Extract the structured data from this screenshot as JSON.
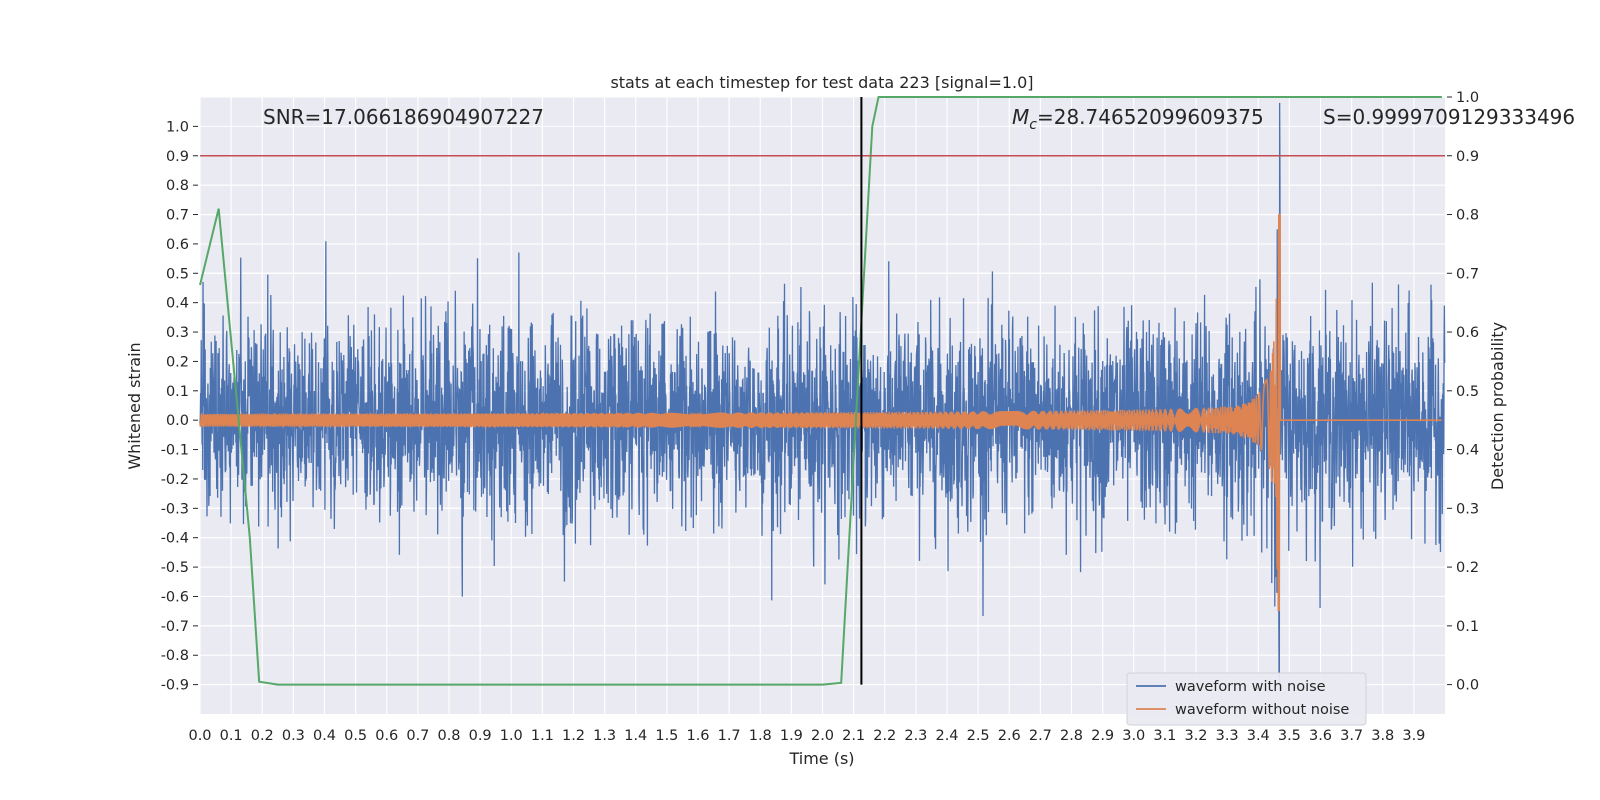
{
  "chart_data": {
    "type": "line",
    "title": "stats at each timestep for test data 223 [signal=1.0]",
    "xlabel": "Time (s)",
    "ylabel": "Whitened strain",
    "y2label": "Detection probability",
    "xlim": [
      0.0,
      4.0
    ],
    "ylim": [
      -1.0,
      1.1
    ],
    "y2lim": [
      -0.05,
      1.0
    ],
    "x_ticks": [
      "0.0",
      "0.1",
      "0.2",
      "0.3",
      "0.4",
      "0.5",
      "0.6",
      "0.7",
      "0.8",
      "0.9",
      "1.0",
      "1.1",
      "1.2",
      "1.3",
      "1.4",
      "1.5",
      "1.6",
      "1.7",
      "1.8",
      "1.9",
      "2.0",
      "2.1",
      "2.2",
      "2.3",
      "2.4",
      "2.5",
      "2.6",
      "2.7",
      "2.8",
      "2.9",
      "3.0",
      "3.1",
      "3.2",
      "3.3",
      "3.4",
      "3.5",
      "3.6",
      "3.7",
      "3.8",
      "3.9"
    ],
    "y_ticks": [
      "1.0",
      "0.9",
      "0.8",
      "0.7",
      "0.6",
      "0.5",
      "0.4",
      "0.3",
      "0.2",
      "0.1",
      "0.0",
      "-0.1",
      "-0.2",
      "-0.3",
      "-0.4",
      "-0.5",
      "-0.6",
      "-0.7",
      "-0.8",
      "-0.9"
    ],
    "y2_ticks": [
      "1.0",
      "0.9",
      "0.8",
      "0.7",
      "0.6",
      "0.5",
      "0.4",
      "0.3",
      "0.2",
      "0.1",
      "0.0"
    ],
    "grid": true,
    "legend_position": "bottom-right",
    "annotations": {
      "snr": "SNR=17.066186904907227",
      "mc_symbol": "M",
      "mc_sub": "c",
      "mc_value": "=28.74652099609375",
      "s_value": "S=0.9999709129333496"
    },
    "detection_time": 2.125,
    "threshold_probability": 0.9,
    "merger_time": 3.47,
    "series": [
      {
        "name": "waveform with noise",
        "color": "#4c72b0"
      },
      {
        "name": "waveform without noise",
        "color": "#dd8452"
      }
    ],
    "probability_series": {
      "color": "#55a868",
      "x": [
        0.0,
        0.06,
        0.16,
        0.19,
        0.25,
        1.0,
        2.0,
        2.06,
        2.16,
        2.18,
        3.99
      ],
      "y": [
        0.68,
        0.81,
        0.25,
        0.005,
        0.0,
        0.0,
        0.0,
        0.003,
        0.95,
        1.0,
        1.0
      ]
    },
    "colors": {
      "background": "#eaeaf2",
      "grid": "#ffffff",
      "threshold": "#c44e52",
      "detection_line": "#000000"
    }
  }
}
